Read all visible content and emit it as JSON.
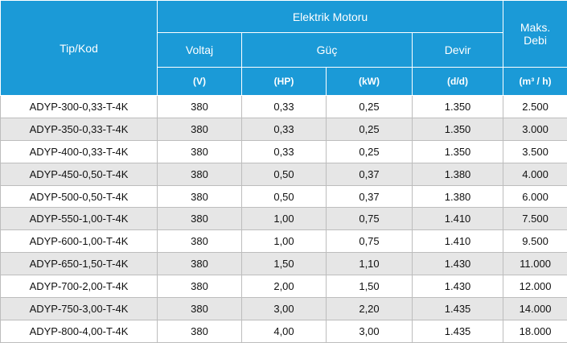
{
  "table": {
    "header": {
      "tip_kod": "Tip/Kod",
      "group": "Elektrik Motoru",
      "voltaj": "Voltaj",
      "guc": "Güç",
      "devir": "Devir",
      "debi": "Maks. Debi",
      "units": [
        "(V)",
        "(HP)",
        "(kW)",
        "(d/d)",
        "(m³ / h)"
      ]
    },
    "rows": [
      [
        "ADYP-300-0,33-T-4K",
        "380",
        "0,33",
        "0,25",
        "1.350",
        "2.500"
      ],
      [
        "ADYP-350-0,33-T-4K",
        "380",
        "0,33",
        "0,25",
        "1.350",
        "3.000"
      ],
      [
        "ADYP-400-0,33-T-4K",
        "380",
        "0,33",
        "0,25",
        "1.350",
        "3.500"
      ],
      [
        "ADYP-450-0,50-T-4K",
        "380",
        "0,50",
        "0,37",
        "1.380",
        "4.000"
      ],
      [
        "ADYP-500-0,50-T-4K",
        "380",
        "0,50",
        "0,37",
        "1.380",
        "6.000"
      ],
      [
        "ADYP-550-1,00-T-4K",
        "380",
        "1,00",
        "0,75",
        "1.410",
        "7.500"
      ],
      [
        "ADYP-600-1,00-T-4K",
        "380",
        "1,00",
        "0,75",
        "1.410",
        "9.500"
      ],
      [
        "ADYP-650-1,50-T-4K",
        "380",
        "1,50",
        "1,10",
        "1.430",
        "11.000"
      ],
      [
        "ADYP-700-2,00-T-4K",
        "380",
        "2,00",
        "1,50",
        "1.430",
        "12.000"
      ],
      [
        "ADYP-750-3,00-T-4K",
        "380",
        "3,00",
        "2,20",
        "1.435",
        "14.000"
      ],
      [
        "ADYP-800-4,00-T-4K",
        "380",
        "4,00",
        "3,00",
        "1.435",
        "18.000"
      ]
    ]
  }
}
